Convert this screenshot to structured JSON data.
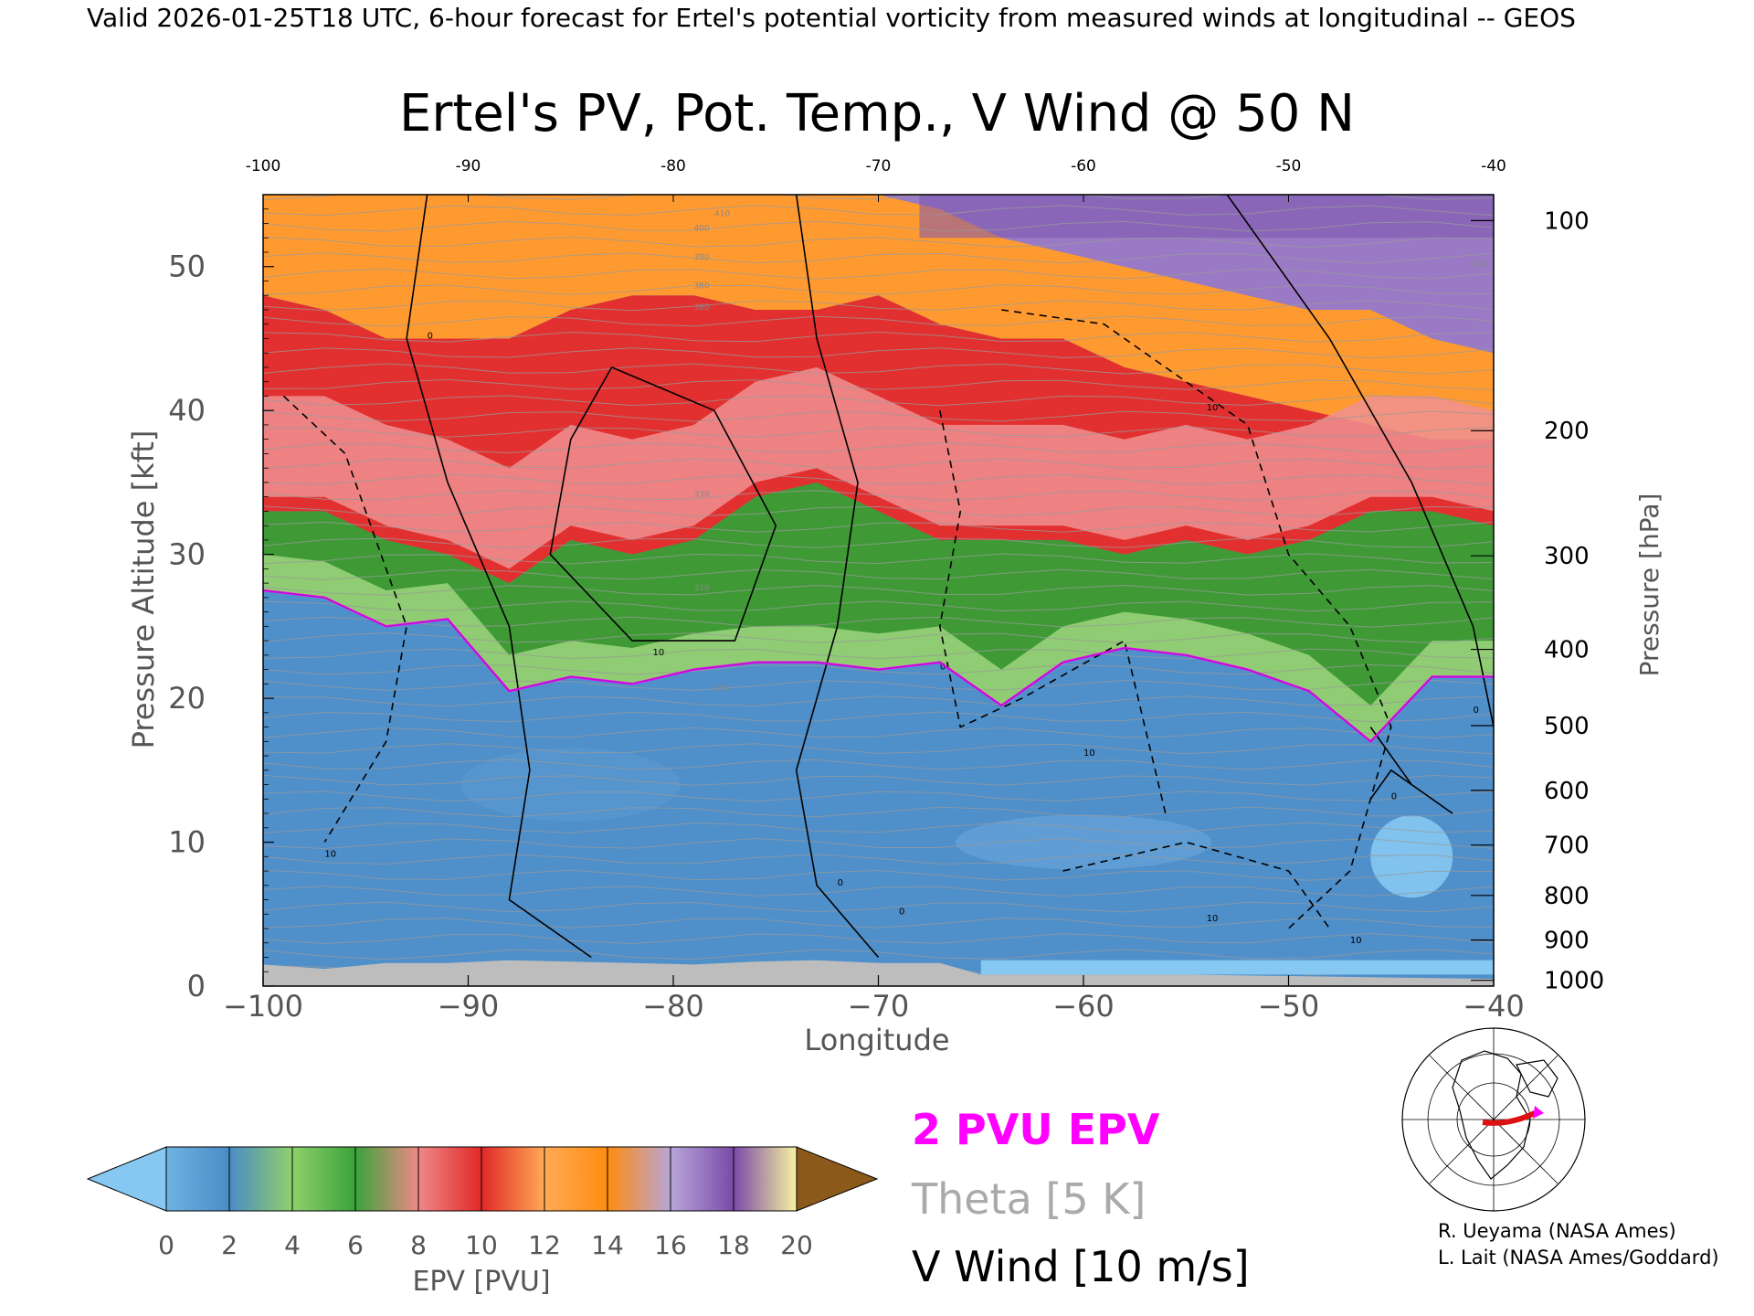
{
  "header": "Valid 2026-01-25T18 UTC, 6-hour forecast for Ertel's potential vorticity from measured winds at longitudinal -- GEOS",
  "title": "Ertel's PV, Pot. Temp., V Wind @ 50 N",
  "chart_data": {
    "type": "heatmap",
    "title": "Ertel's PV, Pot. Temp., V Wind @ 50 N",
    "xlabel": "Longitude",
    "ylabel": "Pressure Altitude [kft]",
    "y2label": "Pressure [hPa]",
    "xlim": [
      -100,
      -40
    ],
    "ylim": [
      0,
      55
    ],
    "x_ticks": [
      -100,
      -90,
      -80,
      -70,
      -60,
      -50,
      -40
    ],
    "x_tick_labels": [
      "−100",
      "−90",
      "−80",
      "−70",
      "−60",
      "−50",
      "−40"
    ],
    "top_ticks": [
      -100,
      -90,
      -80,
      -70,
      -60,
      -50,
      -40
    ],
    "top_tick_labels": [
      "-100",
      "-90",
      "-80",
      "-70",
      "-60",
      "-50",
      "-40"
    ],
    "y_ticks": [
      0,
      10,
      20,
      30,
      40,
      50
    ],
    "y_tick_labels": [
      "0",
      "10",
      "20",
      "30",
      "40",
      "50"
    ],
    "pressure_ticks": [
      {
        "hpa": 1000,
        "kft": 0.4
      },
      {
        "hpa": 900,
        "kft": 3.2
      },
      {
        "hpa": 800,
        "kft": 6.3
      },
      {
        "hpa": 700,
        "kft": 9.8
      },
      {
        "hpa": 600,
        "kft": 13.6
      },
      {
        "hpa": 500,
        "kft": 18.1
      },
      {
        "hpa": 400,
        "kft": 23.4
      },
      {
        "hpa": 300,
        "kft": 29.9
      },
      {
        "hpa": 200,
        "kft": 38.6
      },
      {
        "hpa": 100,
        "kft": 53.2
      }
    ],
    "x": [
      -100,
      -97,
      -94,
      -91,
      -88,
      -85,
      -82,
      -79,
      -76,
      -73,
      -70,
      -67,
      -64,
      -61,
      -58,
      -55,
      -52,
      -49,
      -46,
      -43,
      -40
    ],
    "tropopause_2pvu_kft": [
      27.5,
      27,
      25,
      25.5,
      20.5,
      21.5,
      21,
      22,
      22.5,
      22.5,
      22,
      22.5,
      19.5,
      22.5,
      23.5,
      23,
      22,
      20.5,
      17,
      21.5,
      21.5
    ],
    "epv_bands_kft": [
      {
        "level": "green 4-7 PVU",
        "top_kft": [
          33,
          33,
          31,
          30,
          28,
          31,
          30,
          31,
          34,
          35,
          33,
          31,
          31,
          31,
          30,
          31,
          30,
          31,
          33,
          33,
          32
        ]
      },
      {
        "level": "red 8-10 PVU",
        "top_kft": [
          48,
          47,
          45,
          45,
          45,
          47,
          48,
          48,
          47,
          47,
          48,
          46,
          45,
          45,
          43,
          42,
          41,
          40,
          39,
          38,
          38
        ]
      },
      {
        "level": "orange 11-13 PVU",
        "top_kft": [
          55,
          55,
          55,
          55,
          55,
          55,
          55,
          55,
          55,
          55,
          55,
          54,
          52,
          51,
          50,
          49,
          48,
          47,
          47,
          45,
          44
        ]
      },
      {
        "level": "purple 14-17 PVU",
        "top_kft": [
          55,
          55,
          55,
          55,
          55,
          55,
          55,
          55,
          55,
          55,
          55,
          55,
          55,
          55,
          55,
          55,
          55,
          55,
          55,
          55,
          55
        ]
      }
    ],
    "purple_region_start_lon": -68,
    "theta_label_values": [
      290,
      310,
      330,
      360,
      380,
      390,
      400,
      410,
      420
    ],
    "vwind_contour_labels": [
      "0",
      "0",
      "0",
      "10",
      "10",
      "10",
      "10",
      "10",
      "0",
      "10",
      "0",
      "0"
    ],
    "colorbar": {
      "label": "EPV [PVU]",
      "ticks": [
        "0",
        "2",
        "4",
        "6",
        "8",
        "10",
        "12",
        "14",
        "16",
        "18",
        "20"
      ],
      "colors": [
        "#6fb3e2",
        "#4a8cc6",
        "#8fd06b",
        "#3aa33a",
        "#f08888",
        "#e02828",
        "#ffaa55",
        "#ff8c10",
        "#b7a6d8",
        "#7a4aa8",
        "#f7f3a0"
      ],
      "under_color": "#86c8f2",
      "over_color": "#8b5a1a"
    }
  },
  "legend": {
    "epv_2pvu": "2 PVU EPV",
    "theta": "Theta [5 K]",
    "vwind": "V Wind [10 m/s]",
    "colors": {
      "epv_2pvu": "#ff00ff",
      "theta": "#aaaaaa",
      "vwind": "#000000"
    }
  },
  "credits": {
    "line1": "R. Ueyama (NASA Ames)",
    "line2": "L. Lait (NASA Ames/Goddard)"
  }
}
